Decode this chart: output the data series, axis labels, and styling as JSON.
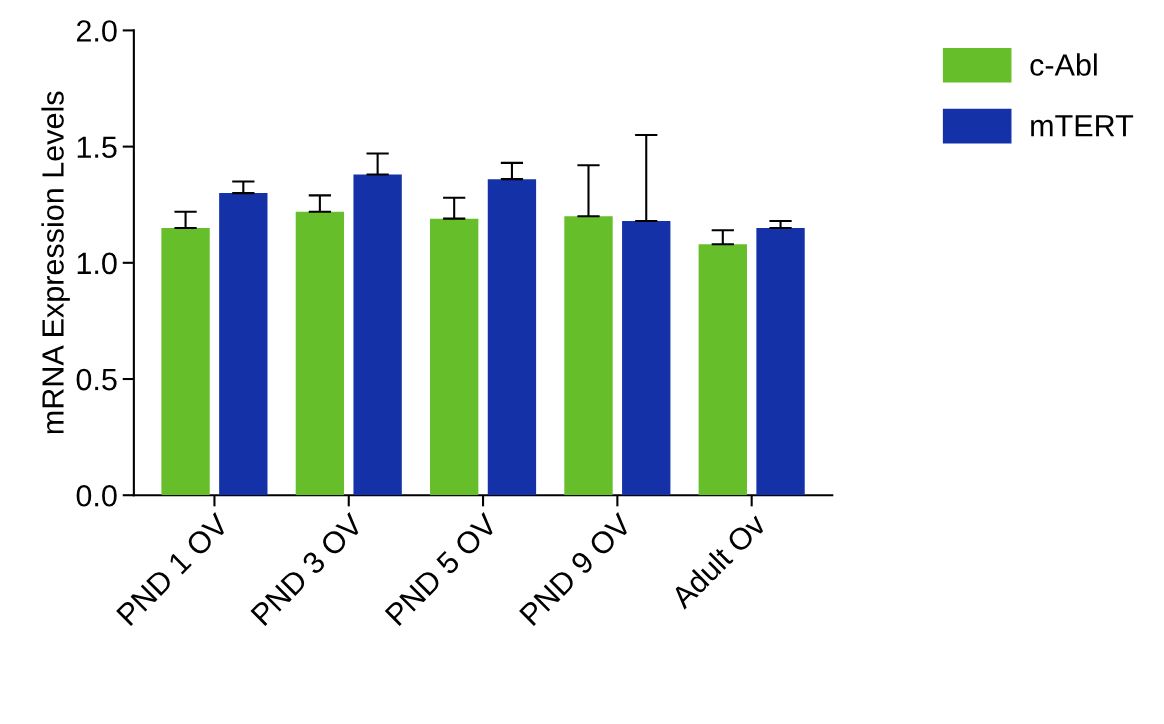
{
  "chart_data": {
    "type": "bar",
    "ylabel": "mRNA Expression Levels",
    "categories": [
      "PND 1 OV",
      "PND 3 OV",
      "PND 5 OV",
      "PND 9 OV",
      "Adult Ov"
    ],
    "series": [
      {
        "name": "c-Abl",
        "color": "#66bf2a",
        "values": [
          1.15,
          1.22,
          1.19,
          1.2,
          1.08
        ],
        "errors": [
          0.07,
          0.07,
          0.09,
          0.22,
          0.06
        ]
      },
      {
        "name": "mTERT",
        "color": "#1431a8",
        "values": [
          1.3,
          1.38,
          1.36,
          1.18,
          1.15
        ],
        "errors": [
          0.05,
          0.09,
          0.07,
          0.37,
          0.03
        ]
      }
    ],
    "ylim": [
      0,
      2.0
    ],
    "yticks": [
      {
        "value": 0,
        "label": "0.0"
      },
      {
        "value": 0.5,
        "label": "0.5"
      },
      {
        "value": 1.0,
        "label": "1.0"
      },
      {
        "value": 1.5,
        "label": "1.5"
      },
      {
        "value": 2.0,
        "label": "2.0"
      }
    ],
    "grid": false,
    "legend": "top right"
  }
}
